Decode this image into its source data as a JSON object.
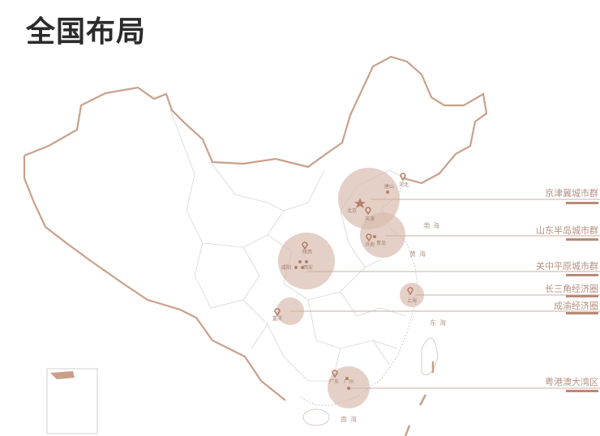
{
  "title": "全国布局",
  "colors": {
    "border": "#c9a08a",
    "circle": "#d9bcae",
    "line": "#cfae9f",
    "label": "#b58f80",
    "bar": "#b98a76"
  },
  "regions": [
    {
      "name": "京津冀城市群",
      "cities": [
        "北京",
        "天津",
        "唐山",
        "河北"
      ]
    },
    {
      "name": "山东半岛城市群",
      "cities": [
        "济南",
        "青岛"
      ]
    },
    {
      "name": "关中平原城市群",
      "cities": [
        "陕西",
        "西安",
        "咸阳"
      ]
    },
    {
      "name": "长三角经济圈",
      "cities": [
        "上海"
      ]
    },
    {
      "name": "成渝经济圈",
      "cities": [
        "重庆"
      ]
    },
    {
      "name": "粤港澳大湾区",
      "cities": [
        "广东",
        "广州"
      ]
    }
  ],
  "seas": [
    "渤海",
    "黄海",
    "东海",
    "南海"
  ],
  "icons": [
    "map-pin-icon",
    "star-icon"
  ]
}
